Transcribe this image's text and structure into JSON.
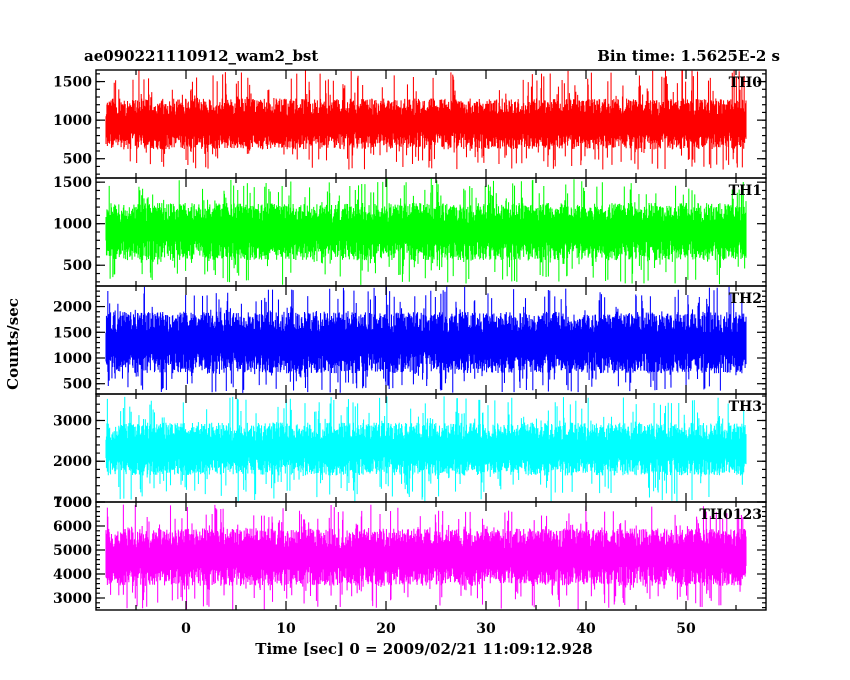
{
  "chart_data": {
    "type": "line",
    "title": "ae090221110912_wam2_bst",
    "subtitle": "Bin time: 1.5625E-2 s",
    "xlabel": "Time [sec] 0 = 2009/02/21 11:09:12.928",
    "ylabel": "Counts/sec",
    "xlim": [
      -9,
      58
    ],
    "x_data_range": [
      -8,
      56
    ],
    "xticks": [
      0,
      10,
      20,
      30,
      40,
      50
    ],
    "grid": false,
    "panels": [
      {
        "name": "TH0",
        "color": "#ff0000",
        "ylim": [
          250,
          1650
        ],
        "yticks": [
          500,
          1000,
          1500
        ],
        "typical": [
          620,
          1280
        ],
        "extreme": [
          360,
          1650
        ]
      },
      {
        "name": "TH1",
        "color": "#00ff00",
        "ylim": [
          250,
          1550
        ],
        "yticks": [
          500,
          1000,
          1500
        ],
        "typical": [
          560,
          1250
        ],
        "extreme": [
          260,
          1550
        ]
      },
      {
        "name": "TH2",
        "color": "#0000ff",
        "ylim": [
          300,
          2400
        ],
        "yticks": [
          500,
          1000,
          1500,
          2000
        ],
        "typical": [
          700,
          1900
        ],
        "extreme": [
          320,
          2400
        ]
      },
      {
        "name": "TH3",
        "color": "#00ffff",
        "ylim": [
          1000,
          3650
        ],
        "yticks": [
          1000,
          2000,
          3000
        ],
        "typical": [
          1650,
          2950
        ],
        "extreme": [
          1000,
          3600
        ]
      },
      {
        "name": "TH0123",
        "color": "#ff00ff",
        "ylim": [
          2500,
          7000
        ],
        "yticks": [
          3000,
          4000,
          5000,
          6000,
          7000
        ],
        "typical": [
          3500,
          5900
        ],
        "extreme": [
          2500,
          6900
        ]
      }
    ]
  }
}
